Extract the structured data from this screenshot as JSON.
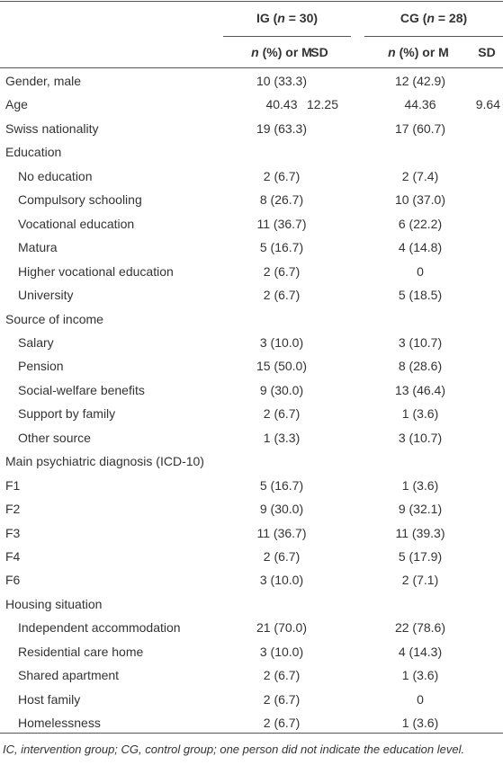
{
  "table": {
    "groups": [
      {
        "label_parts": [
          "IG (",
          "n",
          " = 30)"
        ]
      },
      {
        "label_parts": [
          "CG (",
          "n",
          " = 28)"
        ]
      }
    ],
    "subheader": {
      "main_parts": [
        "n",
        " (%) or M"
      ],
      "sd": "SD"
    },
    "rows": [
      {
        "label": "Gender, male",
        "ig": "10 (33.3)",
        "cg": "12 (42.9)"
      },
      {
        "label": "Age",
        "ig": "40.43",
        "ig_sd": "12.25",
        "cg": "44.36",
        "cg_sd": "9.64"
      },
      {
        "label": "Swiss nationality",
        "ig": "19 (63.3)",
        "cg": "17 (60.7)"
      },
      {
        "label": "Education",
        "rows": [
          {
            "label": "No education",
            "ig": "2 (6.7)",
            "cg": "2 (7.4)"
          },
          {
            "label": "Compulsory schooling",
            "ig": "8 (26.7)",
            "cg": "10 (37.0)"
          },
          {
            "label": "Vocational education",
            "ig": "11 (36.7)",
            "cg": "6 (22.2)"
          },
          {
            "label": "Matura",
            "ig": "5 (16.7)",
            "cg": "4 (14.8)"
          },
          {
            "label": "Higher vocational education",
            "ig": "2 (6.7)",
            "cg": "0"
          },
          {
            "label": "University",
            "ig": "2 (6.7)",
            "cg": "5 (18.5)"
          }
        ]
      },
      {
        "label": "Source of income",
        "rows": [
          {
            "label": "Salary",
            "ig": "3 (10.0)",
            "cg": "3 (10.7)"
          },
          {
            "label": "Pension",
            "ig": "15 (50.0)",
            "cg": "8 (28.6)"
          },
          {
            "label": "Social-welfare benefits",
            "ig": "9 (30.0)",
            "cg": "13 (46.4)"
          },
          {
            "label": "Support by family",
            "ig": "2 (6.7)",
            "cg": "1 (3.6)"
          },
          {
            "label": "Other source",
            "ig": "1 (3.3)",
            "cg": "3 (10.7)"
          }
        ]
      },
      {
        "label": "Main psychiatric diagnosis (ICD-10)"
      },
      {
        "label": "F1",
        "ig": "5 (16.7)",
        "cg": "1 (3.6)"
      },
      {
        "label": "F2",
        "ig": "9 (30.0)",
        "cg": "9 (32.1)"
      },
      {
        "label": "F3",
        "ig": "11 (36.7)",
        "cg": "11 (39.3)"
      },
      {
        "label": "F4",
        "ig": "2 (6.7)",
        "cg": "5 (17.9)"
      },
      {
        "label": "F6",
        "ig": "3 (10.0)",
        "cg": "2 (7.1)"
      },
      {
        "label": "Housing situation",
        "rows": [
          {
            "label": "Independent accommodation",
            "ig": "21 (70.0)",
            "cg": "22 (78.6)"
          },
          {
            "label": "Residential care home",
            "ig": "3 (10.0)",
            "cg": "4 (14.3)"
          },
          {
            "label": "Shared apartment",
            "ig": "2 (6.7)",
            "cg": "1 (3.6)"
          },
          {
            "label": "Host family",
            "ig": "2 (6.7)",
            "cg": "0"
          },
          {
            "label": "Homelessness",
            "ig": "2 (6.7)",
            "cg": "1 (3.6)"
          }
        ]
      }
    ],
    "footnote": "IC, intervention group; CG, control group; one person did not indicate the education level."
  }
}
